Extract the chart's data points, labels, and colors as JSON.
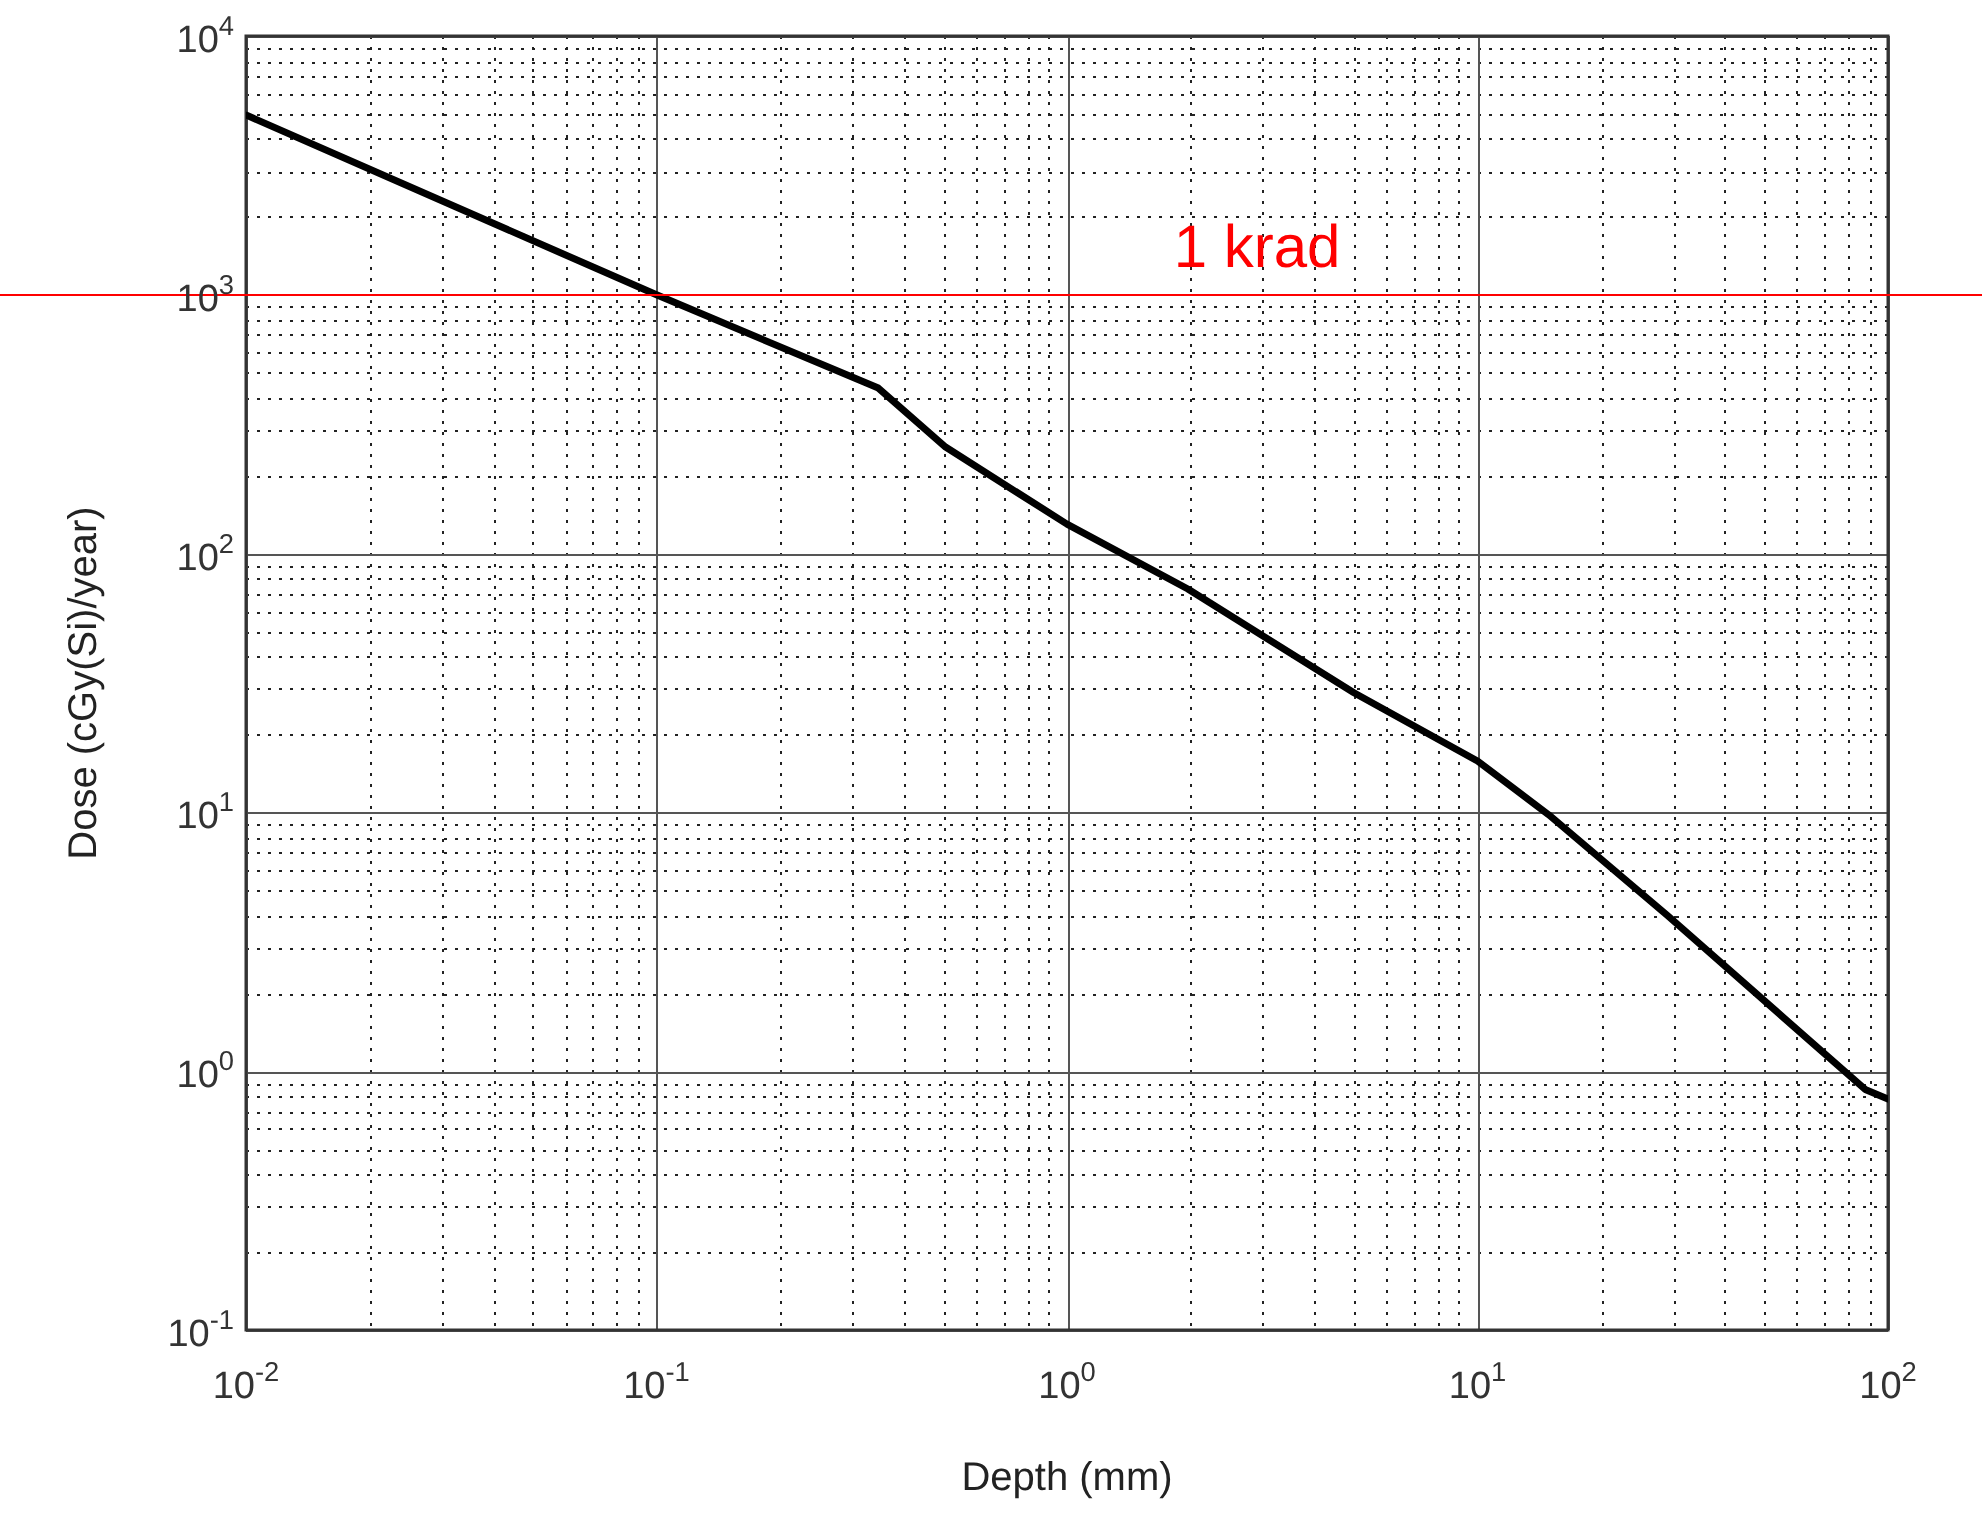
{
  "chart_data": {
    "type": "line",
    "xlabel": "Depth (mm)",
    "ylabel": "Dose (cGy(Si)/year)",
    "log": "xy",
    "grid": true,
    "marker": "none",
    "line_style": "solid",
    "x": [
      0.01,
      0.1,
      0.347,
      0.506,
      1,
      1.97,
      5,
      10,
      14.9,
      29,
      88,
      100
    ],
    "series": [
      {
        "color": "#000000",
        "values": [
          4950,
          1000,
          436,
          258,
          130,
          73,
          29,
          15.8,
          9.8,
          4.0,
          0.85,
          0.78
        ]
      }
    ],
    "xlim": [
      0.01,
      100
    ],
    "ylim": [
      0.1,
      10000
    ],
    "xticks": [
      {
        "value": 0.01,
        "label": "10$^{-2}$"
      },
      {
        "value": 0.1,
        "label": "10$^{-1}$"
      },
      {
        "value": 1,
        "label": "10$^{0}$"
      },
      {
        "value": 10,
        "label": "10$^{1}$"
      },
      {
        "value": 100,
        "label": "10$^{2}$"
      }
    ],
    "yticks": [
      {
        "value": 0.1,
        "label": "10$^{-1}$"
      },
      {
        "value": 1,
        "label": "10$^{0}$"
      },
      {
        "value": 10,
        "label": "10$^{1}$"
      },
      {
        "value": 100,
        "label": "10$^{2}$"
      },
      {
        "value": 1000,
        "label": "10$^{3}$"
      },
      {
        "value": 10000,
        "label": "10$^{4}$"
      }
    ],
    "ref_lines": [
      {
        "axis": "y",
        "value": 1000,
        "label": "1 krad",
        "color": "#ff0000"
      }
    ]
  }
}
